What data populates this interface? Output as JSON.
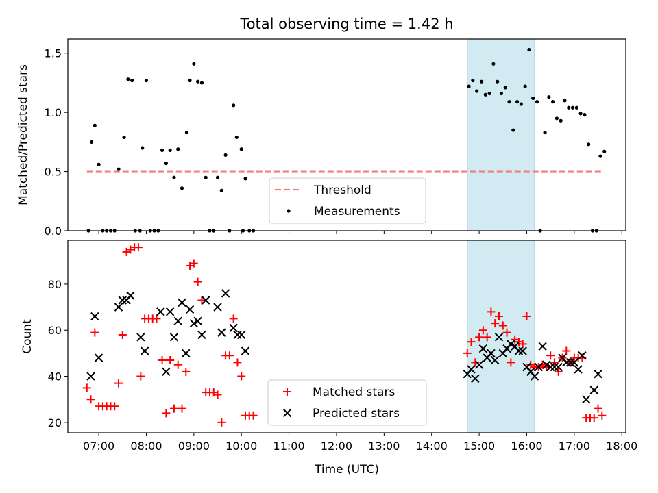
{
  "title": "Total observing time = 1.42 h",
  "chart_data": [
    {
      "type": "scatter",
      "ylabel": "Matched/Predicted stars",
      "ylim": [
        0,
        1.62
      ],
      "yticks": [
        0.0,
        0.5,
        1.0,
        1.5
      ],
      "ytick_labels": [
        "0.0",
        "0.5",
        "1.0",
        "1.5"
      ],
      "xlim": [
        "06:21",
        "18:05"
      ],
      "x_unit": "time_hh:mm",
      "grid": false,
      "legend_position": "bottom-center",
      "threshold": {
        "name": "Threshold",
        "y": 0.5,
        "x_range": [
          "06:45",
          "17:35"
        ],
        "color": "#f08080",
        "style": "dashed"
      },
      "shaded_region": {
        "x_range": [
          "14:45",
          "16:10"
        ],
        "color": "#add8e6"
      },
      "series": [
        {
          "name": "Measurements",
          "marker": "dot",
          "color": "#000000",
          "points": [
            [
              "06:47",
              0.0
            ],
            [
              "06:51",
              0.75
            ],
            [
              "06:55",
              0.89
            ],
            [
              "07:00",
              0.56
            ],
            [
              "07:05",
              0.0
            ],
            [
              "07:10",
              0.0
            ],
            [
              "07:15",
              0.0
            ],
            [
              "07:20",
              0.0
            ],
            [
              "07:25",
              0.52
            ],
            [
              "07:32",
              0.79
            ],
            [
              "07:37",
              1.28
            ],
            [
              "07:42",
              1.27
            ],
            [
              "07:46",
              0.0
            ],
            [
              "07:52",
              0.0
            ],
            [
              "07:55",
              0.7
            ],
            [
              "08:00",
              1.27
            ],
            [
              "08:05",
              0.0
            ],
            [
              "08:10",
              0.0
            ],
            [
              "08:15",
              0.0
            ],
            [
              "08:20",
              0.68
            ],
            [
              "08:25",
              0.57
            ],
            [
              "08:30",
              0.68
            ],
            [
              "08:35",
              0.45
            ],
            [
              "08:40",
              0.69
            ],
            [
              "08:45",
              0.36
            ],
            [
              "08:51",
              0.83
            ],
            [
              "08:55",
              1.27
            ],
            [
              "09:00",
              1.41
            ],
            [
              "09:05",
              1.26
            ],
            [
              "09:10",
              1.25
            ],
            [
              "09:15",
              0.45
            ],
            [
              "09:20",
              0.0
            ],
            [
              "09:25",
              0.0
            ],
            [
              "09:30",
              0.45
            ],
            [
              "09:35",
              0.34
            ],
            [
              "09:40",
              0.64
            ],
            [
              "09:45",
              0.0
            ],
            [
              "09:50",
              1.06
            ],
            [
              "09:54",
              0.79
            ],
            [
              "10:00",
              0.69
            ],
            [
              "10:02",
              0.0
            ],
            [
              "10:05",
              0.44
            ],
            [
              "10:10",
              0.0
            ],
            [
              "10:15",
              0.0
            ],
            [
              "14:47",
              1.22
            ],
            [
              "14:52",
              1.27
            ],
            [
              "14:57",
              1.18
            ],
            [
              "15:03",
              1.26
            ],
            [
              "15:08",
              1.15
            ],
            [
              "15:13",
              1.16
            ],
            [
              "15:18",
              1.41
            ],
            [
              "15:23",
              1.26
            ],
            [
              "15:28",
              1.16
            ],
            [
              "15:33",
              1.21
            ],
            [
              "15:38",
              1.09
            ],
            [
              "15:43",
              0.85
            ],
            [
              "15:48",
              1.09
            ],
            [
              "15:53",
              1.07
            ],
            [
              "15:58",
              1.22
            ],
            [
              "16:03",
              1.53
            ],
            [
              "16:08",
              1.12
            ],
            [
              "16:13",
              1.09
            ],
            [
              "16:17",
              0.0
            ],
            [
              "16:23",
              0.83
            ],
            [
              "16:28",
              1.13
            ],
            [
              "16:33",
              1.09
            ],
            [
              "16:38",
              0.95
            ],
            [
              "16:43",
              0.93
            ],
            [
              "16:48",
              1.1
            ],
            [
              "16:53",
              1.04
            ],
            [
              "16:58",
              1.04
            ],
            [
              "17:03",
              1.04
            ],
            [
              "17:08",
              0.99
            ],
            [
              "17:13",
              0.98
            ],
            [
              "17:18",
              0.73
            ],
            [
              "17:23",
              0.0
            ],
            [
              "17:28",
              0.0
            ],
            [
              "17:33",
              0.63
            ],
            [
              "17:38",
              0.67
            ]
          ]
        }
      ],
      "legend": [
        {
          "label": "Threshold",
          "marker": "dashed-line",
          "color": "#f08080"
        },
        {
          "label": "Measurements",
          "marker": "dot",
          "color": "#000000"
        }
      ]
    },
    {
      "type": "scatter",
      "ylabel": "Count",
      "xlabel": "Time (UTC)",
      "ylim": [
        15.5,
        99
      ],
      "yticks": [
        20,
        40,
        60,
        80
      ],
      "ytick_labels": [
        "20",
        "40",
        "60",
        "80"
      ],
      "xlim": [
        "06:21",
        "18:05"
      ],
      "xticks": [
        "07:00",
        "08:00",
        "09:00",
        "10:00",
        "11:00",
        "12:00",
        "13:00",
        "14:00",
        "15:00",
        "16:00",
        "17:00",
        "18:00"
      ],
      "xtick_labels": [
        "07:00",
        "08:00",
        "09:00",
        "10:00",
        "11:00",
        "12:00",
        "13:00",
        "14:00",
        "15:00",
        "16:00",
        "17:00",
        "18:00"
      ],
      "grid": false,
      "legend_position": "bottom-center",
      "shaded_region": {
        "x_range": [
          "14:45",
          "16:10"
        ],
        "color": "#add8e6"
      },
      "series": [
        {
          "name": "Matched stars",
          "marker": "plus",
          "color": "#ff0000",
          "points": [
            [
              "06:45",
              35
            ],
            [
              "06:50",
              30
            ],
            [
              "06:55",
              59
            ],
            [
              "07:00",
              27
            ],
            [
              "07:05",
              27
            ],
            [
              "07:10",
              27
            ],
            [
              "07:15",
              27
            ],
            [
              "07:20",
              27
            ],
            [
              "07:25",
              37
            ],
            [
              "07:30",
              58
            ],
            [
              "07:35",
              94
            ],
            [
              "07:40",
              95
            ],
            [
              "07:45",
              96
            ],
            [
              "07:50",
              96
            ],
            [
              "07:53",
              40
            ],
            [
              "07:58",
              65
            ],
            [
              "08:03",
              65
            ],
            [
              "08:08",
              65
            ],
            [
              "08:13",
              65
            ],
            [
              "08:20",
              47
            ],
            [
              "08:25",
              24
            ],
            [
              "08:30",
              47
            ],
            [
              "08:35",
              26
            ],
            [
              "08:40",
              45
            ],
            [
              "08:45",
              26
            ],
            [
              "08:50",
              42
            ],
            [
              "08:55",
              88
            ],
            [
              "09:00",
              89
            ],
            [
              "09:05",
              81
            ],
            [
              "09:10",
              73
            ],
            [
              "09:15",
              33
            ],
            [
              "09:20",
              33
            ],
            [
              "09:25",
              33
            ],
            [
              "09:30",
              32
            ],
            [
              "09:35",
              20
            ],
            [
              "09:40",
              49
            ],
            [
              "09:45",
              49
            ],
            [
              "09:50",
              65
            ],
            [
              "09:55",
              46
            ],
            [
              "10:00",
              40
            ],
            [
              "10:05",
              23
            ],
            [
              "10:10",
              23
            ],
            [
              "10:15",
              23
            ],
            [
              "14:45",
              50
            ],
            [
              "14:50",
              55
            ],
            [
              "14:55",
              46
            ],
            [
              "15:00",
              57
            ],
            [
              "15:05",
              60
            ],
            [
              "15:10",
              57
            ],
            [
              "15:15",
              68
            ],
            [
              "15:20",
              63
            ],
            [
              "15:25",
              66
            ],
            [
              "15:30",
              62
            ],
            [
              "15:35",
              59
            ],
            [
              "15:40",
              46
            ],
            [
              "15:45",
              56
            ],
            [
              "15:50",
              55
            ],
            [
              "15:55",
              54
            ],
            [
              "16:00",
              66
            ],
            [
              "16:05",
              45
            ],
            [
              "16:10",
              44
            ],
            [
              "16:15",
              44
            ],
            [
              "16:20",
              45
            ],
            [
              "16:25",
              44
            ],
            [
              "16:30",
              49
            ],
            [
              "16:35",
              46
            ],
            [
              "16:40",
              42
            ],
            [
              "16:45",
              48
            ],
            [
              "16:50",
              51
            ],
            [
              "16:55",
              46
            ],
            [
              "17:00",
              48
            ],
            [
              "17:05",
              48
            ],
            [
              "17:10",
              48
            ],
            [
              "17:15",
              22
            ],
            [
              "17:20",
              22
            ],
            [
              "17:25",
              22
            ],
            [
              "17:30",
              26
            ],
            [
              "17:35",
              23
            ]
          ]
        },
        {
          "name": "Predicted stars",
          "marker": "x",
          "color": "#000000",
          "points": [
            [
              "06:50",
              40
            ],
            [
              "06:55",
              66
            ],
            [
              "07:00",
              48
            ],
            [
              "07:25",
              70
            ],
            [
              "07:30",
              73
            ],
            [
              "07:35",
              73
            ],
            [
              "07:40",
              75
            ],
            [
              "07:53",
              57
            ],
            [
              "07:58",
              51
            ],
            [
              "08:18",
              68
            ],
            [
              "08:25",
              42
            ],
            [
              "08:30",
              68
            ],
            [
              "08:35",
              57
            ],
            [
              "08:40",
              64
            ],
            [
              "08:45",
              72
            ],
            [
              "08:50",
              50
            ],
            [
              "08:55",
              69
            ],
            [
              "09:00",
              63
            ],
            [
              "09:05",
              64
            ],
            [
              "09:10",
              58
            ],
            [
              "09:15",
              73
            ],
            [
              "09:30",
              70
            ],
            [
              "09:35",
              59
            ],
            [
              "09:40",
              76
            ],
            [
              "09:50",
              61
            ],
            [
              "09:55",
              58
            ],
            [
              "10:00",
              58
            ],
            [
              "10:05",
              51
            ],
            [
              "14:45",
              41
            ],
            [
              "14:50",
              43
            ],
            [
              "14:55",
              39
            ],
            [
              "15:00",
              45
            ],
            [
              "15:05",
              52
            ],
            [
              "15:10",
              48
            ],
            [
              "15:15",
              50
            ],
            [
              "15:20",
              47
            ],
            [
              "15:25",
              57
            ],
            [
              "15:30",
              50
            ],
            [
              "15:35",
              52
            ],
            [
              "15:40",
              54
            ],
            [
              "15:45",
              53
            ],
            [
              "15:50",
              51
            ],
            [
              "15:55",
              51
            ],
            [
              "16:00",
              44
            ],
            [
              "16:05",
              42
            ],
            [
              "16:10",
              40
            ],
            [
              "16:15",
              44
            ],
            [
              "16:20",
              53
            ],
            [
              "16:25",
              45
            ],
            [
              "16:30",
              44
            ],
            [
              "16:35",
              44
            ],
            [
              "16:40",
              44
            ],
            [
              "16:45",
              48
            ],
            [
              "16:50",
              46
            ],
            [
              "16:55",
              46
            ],
            [
              "17:00",
              46
            ],
            [
              "17:05",
              43
            ],
            [
              "17:10",
              49
            ],
            [
              "17:15",
              30
            ],
            [
              "17:25",
              34
            ],
            [
              "17:30",
              41
            ]
          ]
        }
      ],
      "legend": [
        {
          "label": "Matched stars",
          "marker": "plus",
          "color": "#ff0000"
        },
        {
          "label": "Predicted stars",
          "marker": "x",
          "color": "#000000"
        }
      ]
    }
  ]
}
